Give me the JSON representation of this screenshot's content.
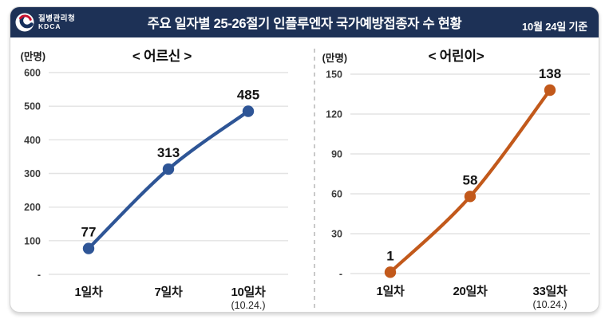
{
  "header": {
    "agency_name_kr": "질병관리청",
    "agency_name_en": "KDCA",
    "title": "주요 일자별 25-26절기 인플루엔자 국가예방접종자 수 현황",
    "date_note": "10월 24일 기준",
    "background_color": "#1d3156"
  },
  "chart_data": [
    {
      "type": "line",
      "title": "< 어르신 >",
      "unit": "(만명)",
      "xlabel": "",
      "ylabel": "(만명)",
      "categories": [
        "1일차",
        "7일차",
        "10일차"
      ],
      "category_notes": [
        "",
        "",
        "(10.24.)"
      ],
      "values": [
        77,
        313,
        485
      ],
      "ylim": [
        0,
        600
      ],
      "y_tick_step": 100,
      "zero_tick_label": "-",
      "line_color": "#2e5596",
      "grid_color": "#e3e3e3",
      "grid": true,
      "legend": "none"
    },
    {
      "type": "line",
      "title": "< 어린이>",
      "unit": "(만명)",
      "xlabel": "",
      "ylabel": "(만명)",
      "categories": [
        "1일차",
        "20일차",
        "33일차"
      ],
      "category_notes": [
        "",
        "",
        "(10.24.)"
      ],
      "values": [
        1,
        58,
        138
      ],
      "ylim": [
        0,
        150
      ],
      "y_tick_step": 30,
      "zero_tick_label": "-",
      "line_color": "#c2591b",
      "grid_color": "#e3e3e3",
      "grid": true,
      "legend": "none"
    }
  ]
}
